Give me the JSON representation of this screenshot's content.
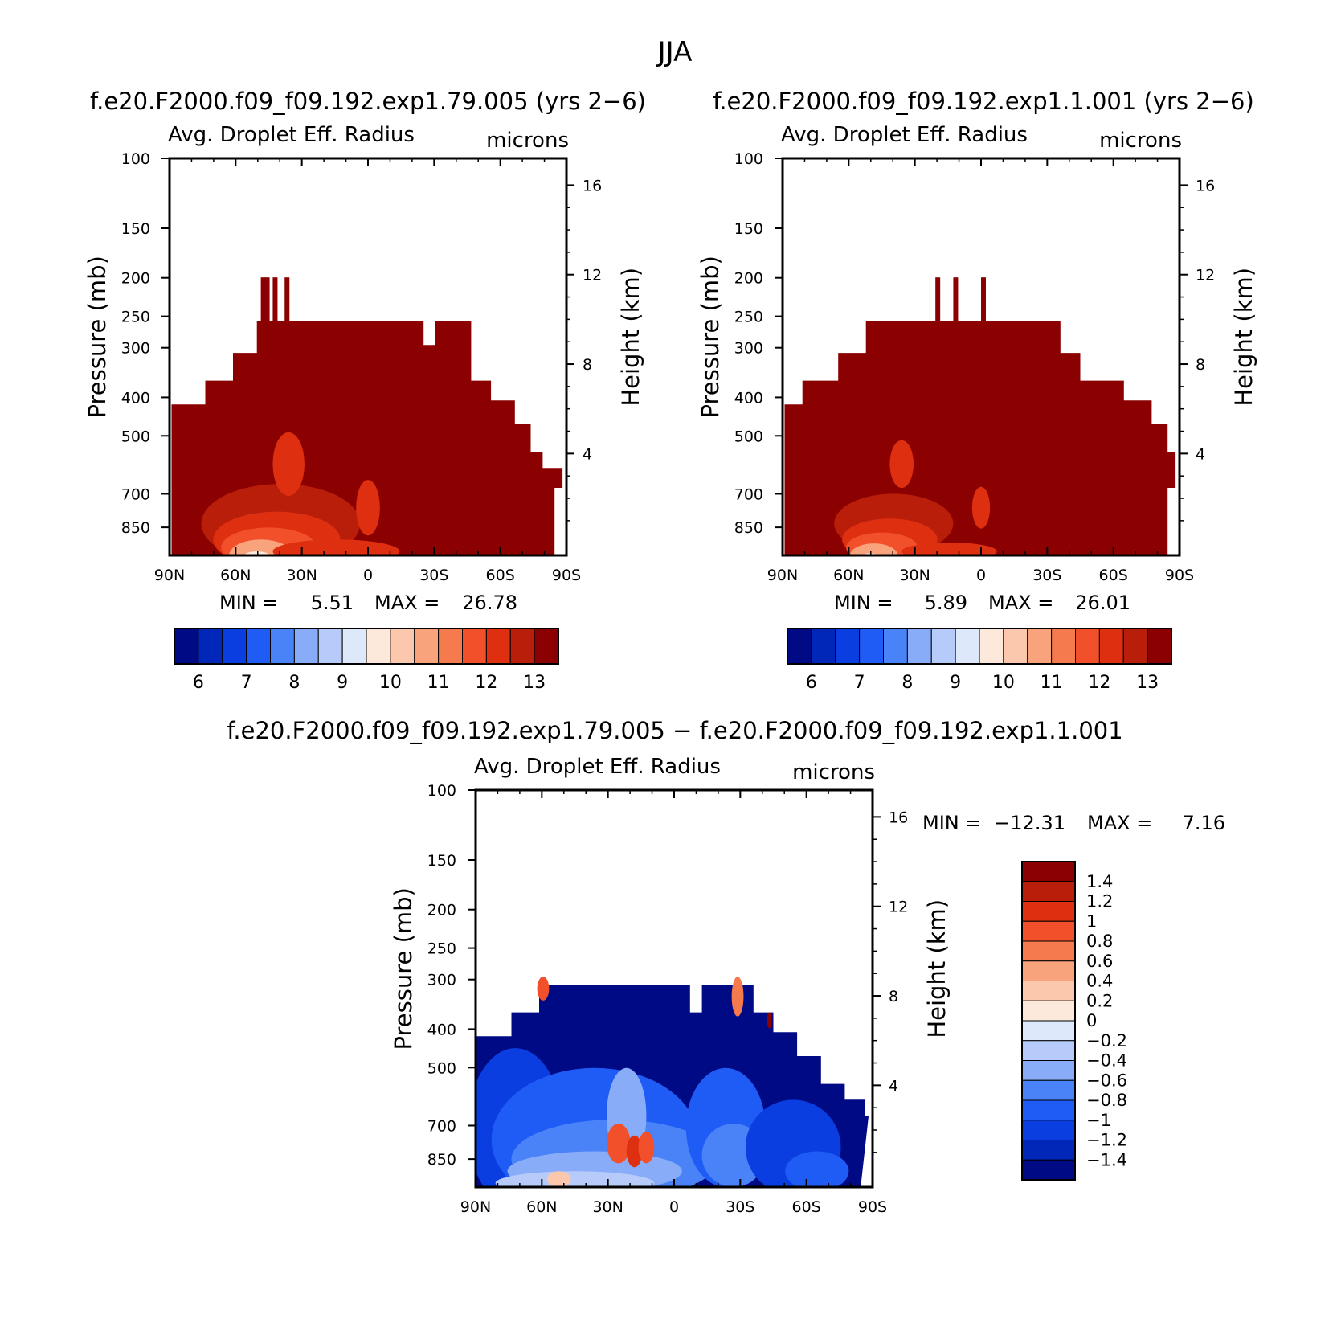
{
  "page": {
    "title": "JJA"
  },
  "panels": [
    {
      "title": "f.e20.F2000.f09_f09.192.exp1.79.005 (yrs 2−6)",
      "field_label": "Avg. Droplet Eff. Radius",
      "units": "microns",
      "min_label": "MIN =",
      "min_value": "5.51",
      "max_label": "MAX =",
      "max_value": "26.78"
    },
    {
      "title": "f.e20.F2000.f09_f09.192.exp1.1.001 (yrs 2−6)",
      "field_label": "Avg. Droplet Eff. Radius",
      "units": "microns",
      "min_label": "MIN =",
      "min_value": "5.89",
      "max_label": "MAX =",
      "max_value": "26.01"
    },
    {
      "title": "f.e20.F2000.f09_f09.192.exp1.79.005 − f.e20.F2000.f09_f09.192.exp1.1.001",
      "field_label": "Avg. Droplet Eff. Radius",
      "units": "microns",
      "min_label": "MIN =",
      "min_value": "−12.31",
      "max_label": "MAX =",
      "max_value": "7.16"
    }
  ],
  "chart_data": [
    {
      "type": "heatmap",
      "title": "f.e20.F2000.f09_f09.192.exp1.79.005 (yrs 2−6)",
      "xlabel": "",
      "ylabel": "Pressure (mb)",
      "ylabel_right": "Height (km)",
      "x_ticks": [
        "90N",
        "60N",
        "30N",
        "0",
        "30S",
        "60S",
        "90S"
      ],
      "y_ticks": [
        100,
        150,
        200,
        250,
        300,
        400,
        500,
        700,
        850
      ],
      "y_right_ticks": [
        16,
        12,
        8,
        4
      ],
      "min": 5.51,
      "max": 26.78,
      "colorbar_labels": [
        "6",
        "7",
        "8",
        "9",
        "10",
        "11",
        "12",
        "13"
      ],
      "colorbar_colors": [
        "#000a85",
        "#0027b8",
        "#0a3ee0",
        "#1f5bf5",
        "#4a82f7",
        "#89acf8",
        "#b6cbfa",
        "#dde8fb",
        "#fde9dc",
        "#fbc8ad",
        "#f8a37c",
        "#f57a4d",
        "#f1502b",
        "#de3010",
        "#b81e0a",
        "#8b0000"
      ]
    },
    {
      "type": "heatmap",
      "title": "f.e20.F2000.f09_f09.192.exp1.1.001 (yrs 2−6)",
      "xlabel": "",
      "ylabel": "Pressure (mb)",
      "ylabel_right": "Height (km)",
      "x_ticks": [
        "90N",
        "60N",
        "30N",
        "0",
        "30S",
        "60S",
        "90S"
      ],
      "y_ticks": [
        100,
        150,
        200,
        250,
        300,
        400,
        500,
        700,
        850
      ],
      "y_right_ticks": [
        16,
        12,
        8,
        4
      ],
      "min": 5.89,
      "max": 26.01,
      "colorbar_labels": [
        "6",
        "7",
        "8",
        "9",
        "10",
        "11",
        "12",
        "13"
      ],
      "colorbar_colors": [
        "#000a85",
        "#0027b8",
        "#0a3ee0",
        "#1f5bf5",
        "#4a82f7",
        "#89acf8",
        "#b6cbfa",
        "#dde8fb",
        "#fde9dc",
        "#fbc8ad",
        "#f8a37c",
        "#f57a4d",
        "#f1502b",
        "#de3010",
        "#b81e0a",
        "#8b0000"
      ]
    },
    {
      "type": "heatmap",
      "title": "f.e20.F2000.f09_f09.192.exp1.79.005 − f.e20.F2000.f09_f09.192.exp1.1.001",
      "xlabel": "",
      "ylabel": "Pressure (mb)",
      "ylabel_right": "Height (km)",
      "x_ticks": [
        "90N",
        "60N",
        "30N",
        "0",
        "30S",
        "60S",
        "90S"
      ],
      "y_ticks": [
        100,
        150,
        200,
        250,
        300,
        400,
        500,
        700,
        850
      ],
      "y_right_ticks": [
        16,
        12,
        8,
        4
      ],
      "min": -12.31,
      "max": 7.16,
      "colorbar_labels": [
        "1.4",
        "1.2",
        "1",
        "0.8",
        "0.6",
        "0.4",
        "0.2",
        "0",
        "−0.2",
        "−0.4",
        "−0.6",
        "−0.8",
        "−1",
        "−1.2",
        "−1.4"
      ],
      "colorbar_colors": [
        "#8b0000",
        "#b81e0a",
        "#de3010",
        "#f1502b",
        "#f57a4d",
        "#f8a37c",
        "#fbc8ad",
        "#fde9dc",
        "#dde8fb",
        "#b6cbfa",
        "#89acf8",
        "#4a82f7",
        "#1f5bf5",
        "#0a3ee0",
        "#0027b8",
        "#000a85"
      ]
    }
  ]
}
